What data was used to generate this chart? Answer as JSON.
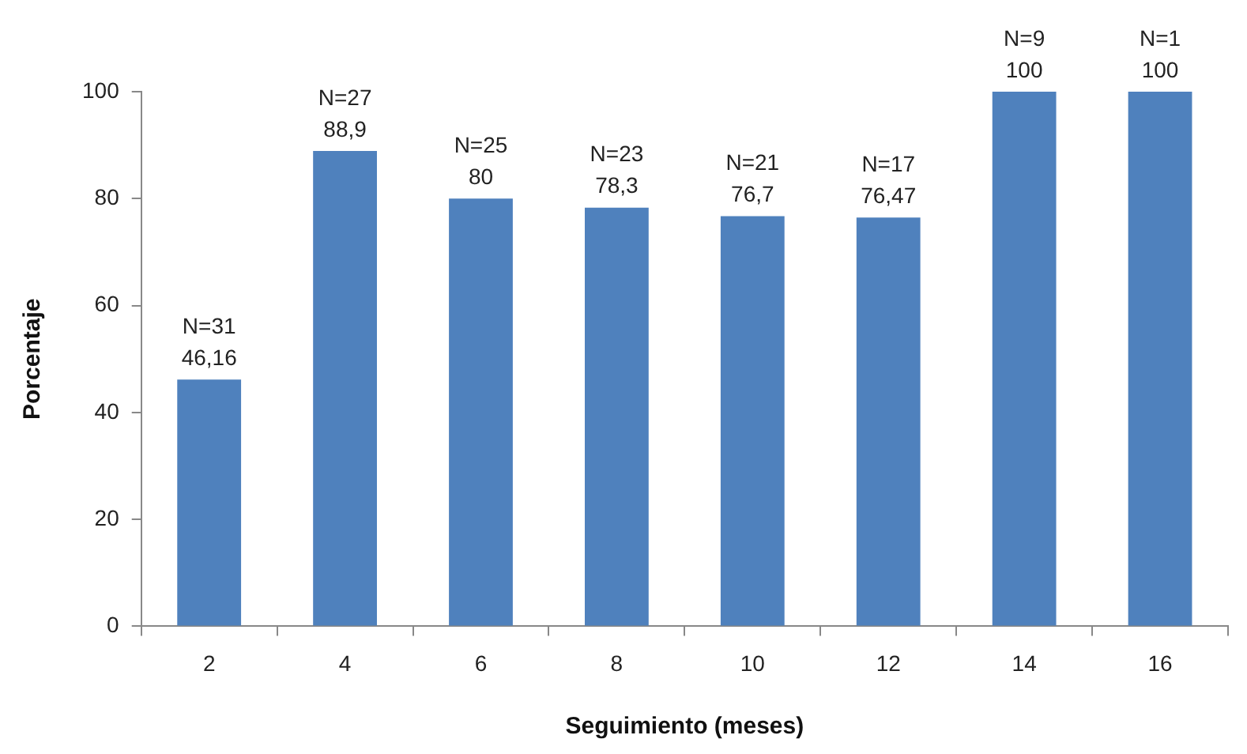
{
  "chart_data": {
    "type": "bar",
    "xlabel": "Seguimiento (meses)",
    "ylabel": "Porcentaje",
    "categories": [
      "2",
      "4",
      "6",
      "8",
      "10",
      "12",
      "14",
      "16"
    ],
    "values": [
      46.16,
      88.9,
      80,
      78.3,
      76.7,
      76.47,
      100,
      100
    ],
    "value_labels": [
      "46,16",
      "88,9",
      "80",
      "78,3",
      "76,7",
      "76,47",
      "100",
      "100"
    ],
    "annotations": [
      {
        "text": "N=31",
        "x": "2",
        "y": 46.16
      },
      {
        "text": "N=27",
        "x": "4",
        "y": 88.9
      },
      {
        "text": "N=25",
        "x": "6",
        "y": 80
      },
      {
        "text": "N=23",
        "x": "8",
        "y": 78.3
      },
      {
        "text": "N=21",
        "x": "10",
        "y": 76.7
      },
      {
        "text": "N=17",
        "x": "12",
        "y": 76.47
      },
      {
        "text": "N=9",
        "x": "14",
        "y": 100
      },
      {
        "text": "N=1",
        "x": "16",
        "y": 100
      }
    ],
    "color": "#4f81bd",
    "ylim": [
      0,
      100
    ],
    "yticks": [
      0,
      20,
      40,
      60,
      80,
      100
    ],
    "grid": false,
    "legend": false
  }
}
